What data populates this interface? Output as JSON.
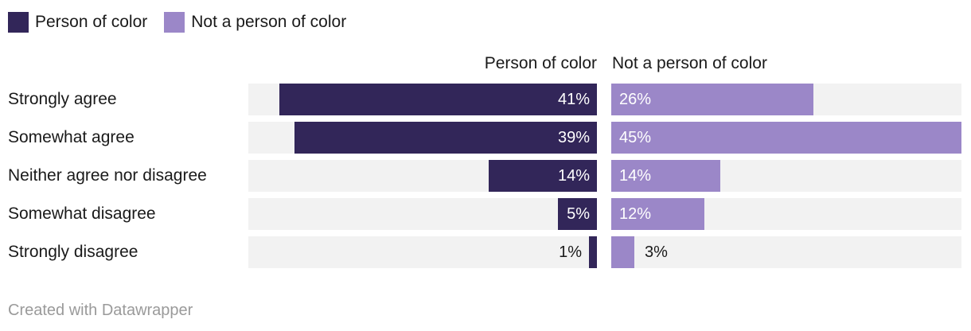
{
  "legend": {
    "items": [
      {
        "label": "Person of color",
        "swatch_color": "#322659"
      },
      {
        "label": "Not a person of color",
        "swatch_color": "#9b87c8"
      }
    ]
  },
  "chart_data": {
    "type": "bar",
    "orientation": "horizontal",
    "layout": "split-columns",
    "categories": [
      "Strongly agree",
      "Somewhat agree",
      "Neither agree nor disagree",
      "Somewhat disagree",
      "Strongly disagree"
    ],
    "series": [
      {
        "name": "Person of color",
        "color": "#322659",
        "align": "right",
        "values": [
          41,
          39,
          14,
          5,
          1
        ],
        "labels": [
          "41%",
          "39%",
          "14%",
          "5%",
          "1%"
        ]
      },
      {
        "name": "Not a person of color",
        "color": "#9b87c8",
        "align": "left",
        "values": [
          26,
          45,
          14,
          12,
          3
        ],
        "labels": [
          "26%",
          "45%",
          "14%",
          "12%",
          "3%"
        ]
      }
    ],
    "xlim": [
      0,
      45
    ],
    "grid": false,
    "legend_position": "top-left",
    "track_color": "#f2f2f2"
  },
  "footer": {
    "credit": "Created with Datawrapper"
  }
}
